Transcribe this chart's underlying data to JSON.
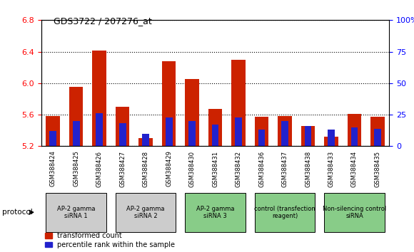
{
  "title": "GDS3722 / 207276_at",
  "samples": [
    "GSM388424",
    "GSM388425",
    "GSM388426",
    "GSM388427",
    "GSM388428",
    "GSM388429",
    "GSM388430",
    "GSM388431",
    "GSM388432",
    "GSM388436",
    "GSM388437",
    "GSM388438",
    "GSM388433",
    "GSM388434",
    "GSM388435"
  ],
  "transformed_count": [
    5.58,
    5.95,
    6.41,
    5.7,
    5.3,
    6.28,
    6.05,
    5.67,
    6.3,
    5.57,
    5.58,
    5.46,
    5.32,
    5.61,
    5.57
  ],
  "percentile_rank": [
    12,
    20,
    26,
    18,
    10,
    23,
    20,
    17,
    23,
    13,
    20,
    16,
    13,
    15,
    14
  ],
  "y_min": 5.2,
  "y_max": 6.8,
  "y_ticks": [
    5.2,
    5.6,
    6.0,
    6.4,
    6.8
  ],
  "right_y_ticks": [
    0,
    25,
    50,
    75,
    100
  ],
  "right_y_labels": [
    "0",
    "25",
    "50",
    "75",
    "100%"
  ],
  "bar_color_red": "#cc2200",
  "bar_color_blue": "#2222cc",
  "groups": [
    {
      "label": "AP-2 gamma\nsiRNA 1",
      "indices": [
        0,
        1,
        2
      ],
      "color": "#cccccc"
    },
    {
      "label": "AP-2 gamma\nsiRNA 2",
      "indices": [
        3,
        4,
        5
      ],
      "color": "#cccccc"
    },
    {
      "label": "AP-2 gamma\nsiRNA 3",
      "indices": [
        6,
        7,
        8
      ],
      "color": "#88cc88"
    },
    {
      "label": "control (transfection\nreagent)",
      "indices": [
        9,
        10,
        11
      ],
      "color": "#88cc88"
    },
    {
      "label": "Non-silencing control\nsiRNA",
      "indices": [
        12,
        13,
        14
      ],
      "color": "#88cc88"
    }
  ],
  "protocol_label": "protocol",
  "legend_red": "transformed count",
  "legend_blue": "percentile rank within the sample",
  "bar_width": 0.6,
  "blue_bar_width": 0.3,
  "fig_width": 5.8,
  "fig_height": 3.54
}
